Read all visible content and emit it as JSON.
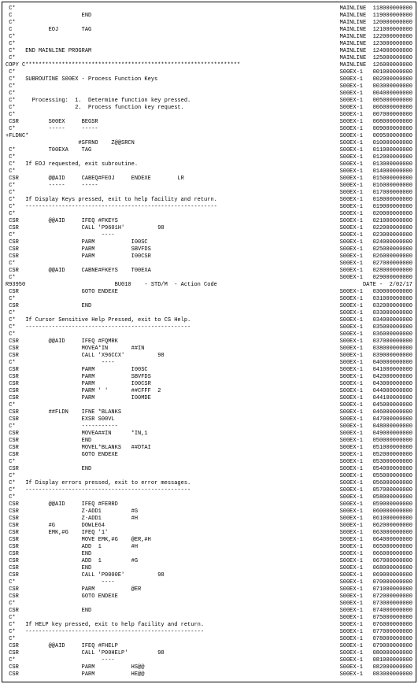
{
  "lines": [
    {
      "left": " C*",
      "right": "MAINLINE  118000000000"
    },
    {
      "left": " C                     END",
      "right": "MAINLINE  119000000000"
    },
    {
      "left": " C*",
      "right": "MAINLINE  120000000000"
    },
    {
      "left": " C           EOJ       TAG",
      "right": "MAINLINE  121000000000"
    },
    {
      "left": " C*",
      "right": "MAINLINE  122000000000"
    },
    {
      "left": " C*",
      "right": "MAINLINE  123000000000"
    },
    {
      "left": " C*   END MAINLINE PROGRAM",
      "right": "MAINLINE  124000000000"
    },
    {
      "left": " C*",
      "right": "MAINLINE  125000000000"
    },
    {
      "left": "COPY C*****************************************************************",
      "right": "MAINLINE  126000000000"
    },
    {
      "left": " C*",
      "right": "S00EX-1   001000000000"
    },
    {
      "left": " C*   SUBROUTINE S00EX - Process Function Keys",
      "right": "S00EX-1   002000000000"
    },
    {
      "left": " C*",
      "right": "S00EX-1   003000000000"
    },
    {
      "left": " C*",
      "right": "S00EX-1   004000000000"
    },
    {
      "left": " C*     Processing:  1.  Determine function key pressed.",
      "right": "S00EX-1   005000000000"
    },
    {
      "left": " C*                  2.  Process function key request.",
      "right": "S00EX-1   006000000000"
    },
    {
      "left": " C*",
      "right": "S00EX-1   007000000000"
    },
    {
      "left": " CSR         S00EX     BEGSR",
      "right": "S00EX-1   008000000000"
    },
    {
      "left": " C*          -----     -----",
      "right": "S00EX-1   009000000000"
    },
    {
      "left": "+FLDNC*",
      "right": "S00EX-1   009500000000"
    },
    {
      "left": "                      #SFRNO    Z@@SRCN",
      "right": "S00EX-1   010000000000"
    },
    {
      "left": " C*          T00EXA    TAG",
      "right": "S00EX-1   011000000000"
    },
    {
      "left": " C*",
      "right": "S00EX-1   012000000000"
    },
    {
      "left": " C*   If EOJ requested, exit subroutine.",
      "right": "S00EX-1   013000000000"
    },
    {
      "left": " C*",
      "right": "S00EX-1   014000000000"
    },
    {
      "left": " CSR         @@AID     CABEQ#FEOJ     ENDEXE        LR",
      "right": "S00EX-1   015000000000"
    },
    {
      "left": " C*          -----     -----",
      "right": "S00EX-1   016000000000"
    },
    {
      "left": " C*",
      "right": "S00EX-1   017000000000"
    },
    {
      "left": " C*   If Display Keys pressed, exit to help facility and return.",
      "right": "S00EX-1   018000000000"
    },
    {
      "left": " C*   ----------------------------------------------------------",
      "right": "S00EX-1   019000000000"
    },
    {
      "left": " C*",
      "right": "S00EX-1   020000000000"
    },
    {
      "left": " CSR         @@AID     IFEQ #FKEYS",
      "right": "S00EX-1   021000000000"
    },
    {
      "left": " CSR                   CALL 'P9601H'          98",
      "right": "S00EX-1   022000000000"
    },
    {
      "left": " C*                          ----",
      "right": "S00EX-1   023000000000"
    },
    {
      "left": " CSR                   PARM           I00SC",
      "right": "S00EX-1   024000000000"
    },
    {
      "left": " CSR                   PARM           SBVFDS",
      "right": "S00EX-1   025000000000"
    },
    {
      "left": " CSR                   PARM           I00CSR",
      "right": "S00EX-1   026000000000"
    },
    {
      "left": " C*",
      "right": "S00EX-1   027000000000"
    },
    {
      "left": " CSR         @@AID     CABNE#FKEYS    T00EXA",
      "right": "S00EX-1   028000000000"
    },
    {
      "left": " C*",
      "right": "S00EX-1   029000000000"
    },
    {
      "left": "R93950                           BU010    - STD/M  - Action Code",
      "right": "DATE -  2/02/17"
    },
    {
      "left": " CSR                   GOTO ENDEXE",
      "right": "S00EX-1   030000000000"
    },
    {
      "left": " C*",
      "right": "S00EX-1   031000000000"
    },
    {
      "left": " CSR                   END",
      "right": "S00EX-1   032000000000"
    },
    {
      "left": " C*",
      "right": "S00EX-1   033000000000"
    },
    {
      "left": " C*   If Cursor Sensitive Help Pressed, exit to CS Help.",
      "right": "S00EX-1   034000000000"
    },
    {
      "left": " C*   --------------------------------------------------",
      "right": "S00EX-1   035000000000"
    },
    {
      "left": " C*",
      "right": "S00EX-1   036000000000"
    },
    {
      "left": " CSR         @@AID     IFEQ #FQMRK",
      "right": "S00EX-1   037000000000"
    },
    {
      "left": " CSR                   MOVEA*IN       ##IN",
      "right": "S00EX-1   038000000000"
    },
    {
      "left": " CSR                   CALL 'X96CCX'          98",
      "right": "S00EX-1   039000000000"
    },
    {
      "left": " C*                          ----",
      "right": "S00EX-1   040000000000"
    },
    {
      "left": " CSR                   PARM           I00SC",
      "right": "S00EX-1   041000000000"
    },
    {
      "left": " CSR                   PARM           SBVFDS",
      "right": "S00EX-1   042000000000"
    },
    {
      "left": " CSR                   PARM           I00CSR",
      "right": "S00EX-1   043000000000"
    },
    {
      "left": " CSR                   PARM ' '       ##CFFF  2",
      "right": "S00EX-1   044000000000"
    },
    {
      "left": " CSR                   PARM           I00MDE",
      "right": "S00EX-1   044100000000"
    },
    {
      "left": " C*",
      "right": "S00EX-1   045000000000"
    },
    {
      "left": " CSR         ##FLDN    IFNE *BLANKS",
      "right": "S00EX-1   046000000000"
    },
    {
      "left": " CSR                   EXSR S00VL",
      "right": "S00EX-1   047000000000"
    },
    {
      "left": " C*                    -----------",
      "right": "S00EX-1   048000000000"
    },
    {
      "left": " CSR                   MOVEA##IN      *IN,1",
      "right": "S00EX-1   049000000000"
    },
    {
      "left": " CSR                   END",
      "right": "S00EX-1   050000000000"
    },
    {
      "left": " CSR                   MOVEL*BLANKS   ##DTAI",
      "right": "S00EX-1   051000000000"
    },
    {
      "left": " CSR                   GOTO ENDEXE",
      "right": "S00EX-1   052000000000"
    },
    {
      "left": " C*",
      "right": "S00EX-1   053000000000"
    },
    {
      "left": " CSR                   END",
      "right": "S00EX-1   054000000000"
    },
    {
      "left": " C*",
      "right": "S00EX-1   055000000000"
    },
    {
      "left": " C*   If Display errors pressed, exit to error messages.",
      "right": "S00EX-1   056000000000"
    },
    {
      "left": " C*   --------------------------------------------------",
      "right": "S00EX-1   057000000000"
    },
    {
      "left": " C*",
      "right": "S00EX-1   058000000000"
    },
    {
      "left": " CSR         @@AID     IFEQ #FERRD",
      "right": "S00EX-1   059000000000"
    },
    {
      "left": " CSR                   Z-ADD1         #G",
      "right": "S00EX-1   060000000000"
    },
    {
      "left": " CSR                   Z-ADD1         #H",
      "right": "S00EX-1   061000000000"
    },
    {
      "left": " CSR         #G        DOWLE64",
      "right": "S00EX-1   062000000000"
    },
    {
      "left": " CSR         EMK,#G    IFEQ '1'",
      "right": "S00EX-1   063000000000"
    },
    {
      "left": " CSR                   MOVE EMK,#G    @ER,#H",
      "right": "S00EX-1   064000000000"
    },
    {
      "left": " CSR                   ADD  1         #H",
      "right": "S00EX-1   065000000000"
    },
    {
      "left": " CSR                   END",
      "right": "S00EX-1   066000000000"
    },
    {
      "left": " CSR                   ADD  1         #G",
      "right": "S00EX-1   067000000000"
    },
    {
      "left": " CSR                   END",
      "right": "S00EX-1   068000000000"
    },
    {
      "left": " CSR                   CALL 'P0000E'          98",
      "right": "S00EX-1   069000000000"
    },
    {
      "left": " C*                          ----",
      "right": "S00EX-1   070000000000"
    },
    {
      "left": " CSR                   PARM           @ER",
      "right": "S00EX-1   071000000000"
    },
    {
      "left": " CSR                   GOTO ENDEXE",
      "right": "S00EX-1   072000000000"
    },
    {
      "left": " C*",
      "right": "S00EX-1   073000000000"
    },
    {
      "left": " CSR                   END",
      "right": "S00EX-1   074000000000"
    },
    {
      "left": " C*",
      "right": "S00EX-1   075000000000"
    },
    {
      "left": " C*   If HELP key pressed, exit to help facility and return.",
      "right": "S00EX-1   076000000000"
    },
    {
      "left": " C*   ------------------------------------------------------",
      "right": "S00EX-1   077000000000"
    },
    {
      "left": " C*",
      "right": "S00EX-1   078000000000"
    },
    {
      "left": " CSR         @@AID     IFEQ #FHELP",
      "right": "S00EX-1   079000000000"
    },
    {
      "left": " CSR                   CALL 'P00HELP'         98",
      "right": "S00EX-1   080000000000"
    },
    {
      "left": " C*                          ----",
      "right": "S00EX-1   081000000000"
    },
    {
      "left": " CSR                   PARM           HS@@",
      "right": "S00EX-1   082000000000"
    },
    {
      "left": " CSR                   PARM           HE@@",
      "right": "S00EX-1   083000000000"
    }
  ]
}
